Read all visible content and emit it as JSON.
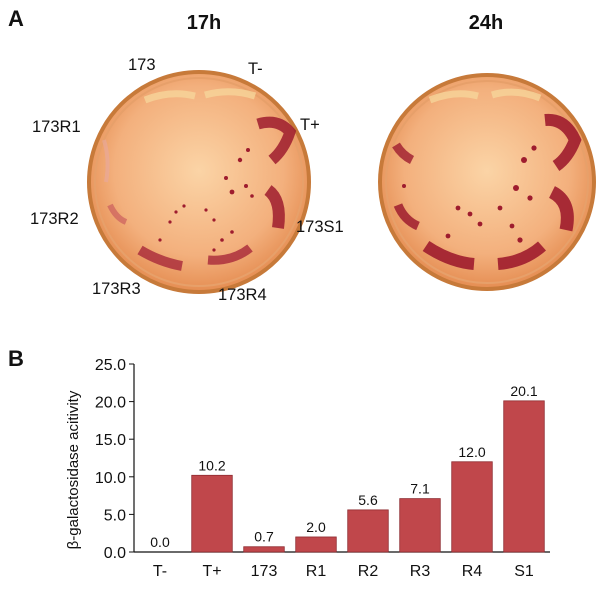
{
  "panel_a": {
    "letter": "A",
    "time_left": "17h",
    "time_right": "24h",
    "labels": {
      "s173": "173",
      "tminus": "T-",
      "tplus": "T+",
      "r1": "173R1",
      "r2": "173R2",
      "r3": "173R3",
      "r4": "173R4",
      "s1": "173S1"
    }
  },
  "panel_b": {
    "letter": "B"
  },
  "colors": {
    "bar": "#c0474b",
    "plate_rim": "#c77a3a",
    "agar": "#f3b07d",
    "colony": "#9e1c2e"
  },
  "chart_data": {
    "type": "bar",
    "categories": [
      "T-",
      "T+",
      "173",
      "R1",
      "R2",
      "R3",
      "R4",
      "S1"
    ],
    "values": [
      0.0,
      10.2,
      0.7,
      2.0,
      5.6,
      7.1,
      12.0,
      20.1
    ],
    "value_labels": [
      "0.0",
      "10.2",
      "0.7",
      "2.0",
      "5.6",
      "7.1",
      "12.0",
      "20.1"
    ],
    "ylabel": "β-galactosidase acitivity",
    "xlabel": "",
    "ylim": [
      0,
      25
    ],
    "yticks": [
      "0.0",
      "5.0",
      "10.0",
      "15.0",
      "20.0",
      "25.0"
    ],
    "grid": false,
    "legend": "none"
  }
}
